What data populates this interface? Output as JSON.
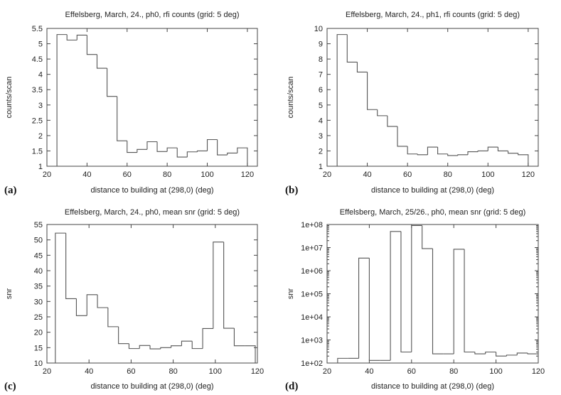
{
  "chart_data": [
    {
      "type": "step",
      "panel_label": "(a)",
      "title": "Effelsberg, March, 24., ph0, rfi counts (grid: 5 deg)",
      "xlabel": "distance to building at (298,0) (deg)",
      "ylabel": "counts/scan",
      "xlim": [
        20,
        125
      ],
      "ylim": [
        1,
        5.5
      ],
      "scale": "linear",
      "xticks": [
        20,
        40,
        60,
        80,
        100,
        120
      ],
      "xtick_labels": [
        "20",
        "40",
        "60",
        "80",
        "100",
        "120"
      ],
      "yticks": [
        1,
        1.5,
        2,
        2.5,
        3,
        3.5,
        4,
        4.5,
        5,
        5.5
      ],
      "ytick_labels": [
        "1",
        "1.5",
        "2",
        "2.5",
        "3",
        "3.5",
        "4",
        "4.5",
        "5",
        "5.5"
      ],
      "bin_edges": [
        25,
        30,
        35,
        40,
        45,
        50,
        55,
        60,
        65,
        70,
        75,
        80,
        85,
        90,
        95,
        100,
        105,
        110,
        115,
        120
      ],
      "values": [
        5.3,
        5.12,
        5.28,
        4.65,
        4.2,
        3.28,
        1.83,
        1.45,
        1.55,
        1.8,
        1.48,
        1.6,
        1.3,
        1.47,
        1.5,
        1.87,
        1.37,
        1.43,
        1.6
      ]
    },
    {
      "type": "step",
      "panel_label": "(b)",
      "title": "Effelsberg, March, 24., ph1, rfi counts (grid: 5 deg)",
      "xlabel": "distance to building at (298,0) (deg)",
      "ylabel": "counts/scan",
      "xlim": [
        20,
        125
      ],
      "ylim": [
        1,
        10
      ],
      "scale": "linear",
      "xticks": [
        20,
        40,
        60,
        80,
        100,
        120
      ],
      "xtick_labels": [
        "20",
        "40",
        "60",
        "80",
        "100",
        "120"
      ],
      "yticks": [
        1,
        2,
        3,
        4,
        5,
        6,
        7,
        8,
        9,
        10
      ],
      "ytick_labels": [
        "1",
        "2",
        "3",
        "4",
        "5",
        "6",
        "7",
        "8",
        "9",
        "10"
      ],
      "bin_edges": [
        25,
        30,
        35,
        40,
        45,
        50,
        55,
        60,
        65,
        70,
        75,
        80,
        85,
        90,
        95,
        100,
        105,
        110,
        115,
        120
      ],
      "values": [
        9.6,
        7.8,
        7.15,
        4.7,
        4.3,
        3.6,
        2.3,
        1.8,
        1.75,
        2.25,
        1.8,
        1.7,
        1.75,
        1.95,
        2.0,
        2.25,
        2.0,
        1.85,
        1.75
      ]
    },
    {
      "type": "step",
      "panel_label": "(c)",
      "title": "Effelsberg, March, 24., ph0, mean snr (grid: 5 deg)",
      "xlabel": "distance to building at (298,0) (deg)",
      "ylabel": "snr",
      "xlim": [
        20,
        120
      ],
      "ylim": [
        10,
        55
      ],
      "scale": "linear",
      "xticks": [
        20,
        40,
        60,
        80,
        100,
        120
      ],
      "xtick_labels": [
        "20",
        "40",
        "60",
        "80",
        "100",
        "120"
      ],
      "yticks": [
        10,
        15,
        20,
        25,
        30,
        35,
        40,
        45,
        50,
        55
      ],
      "ytick_labels": [
        "10",
        "15",
        "20",
        "25",
        "30",
        "35",
        "40",
        "45",
        "50",
        "55"
      ],
      "bin_edges": [
        24,
        29,
        34,
        39,
        44,
        49,
        54,
        59,
        64,
        69,
        74,
        79,
        84,
        89,
        94,
        99,
        104,
        109,
        114,
        119
      ],
      "values": [
        52.2,
        30.9,
        25.4,
        32.2,
        28.0,
        21.8,
        16.3,
        14.7,
        15.7,
        14.6,
        15.0,
        15.6,
        17.1,
        14.7,
        21.2,
        49.3,
        21.3,
        15.6,
        15.6
      ]
    },
    {
      "type": "step",
      "panel_label": "(d)",
      "title": "Effelsberg, March, 25/26., ph0, mean snr (grid: 5 deg)",
      "xlabel": "distance to building at (298,0) (deg)",
      "ylabel": "snr",
      "xlim": [
        20,
        120
      ],
      "ylim": [
        100,
        100000000
      ],
      "scale": "log",
      "xticks": [
        20,
        40,
        60,
        80,
        100,
        120
      ],
      "xtick_labels": [
        "20",
        "40",
        "60",
        "80",
        "100",
        "120"
      ],
      "yticks": [
        100,
        1000,
        10000,
        100000,
        1000000,
        10000000,
        100000000
      ],
      "ytick_labels": [
        "1e+02",
        "1e+03",
        "1e+04",
        "1e+05",
        "1e+06",
        "1e+07",
        "1e+08"
      ],
      "bin_edges": [
        25,
        30,
        35,
        40,
        45,
        50,
        55,
        60,
        65,
        70,
        75,
        80,
        85,
        90,
        95,
        100,
        105,
        110,
        115,
        120
      ],
      "values": [
        160,
        160,
        3500000,
        130,
        130,
        50000000,
        300,
        90000000,
        9000000,
        250,
        250,
        8500000,
        300,
        250,
        300,
        200,
        220,
        270,
        250
      ]
    }
  ]
}
